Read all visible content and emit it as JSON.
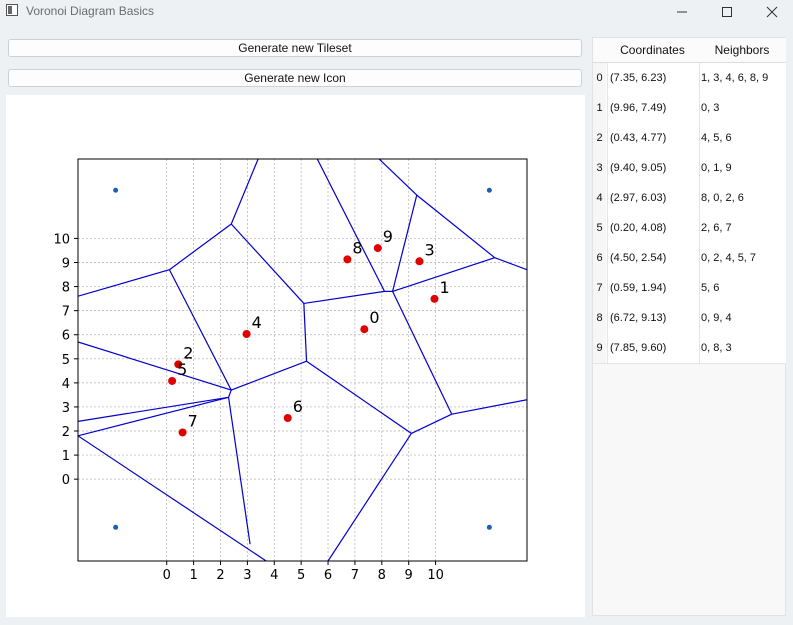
{
  "window": {
    "title": "Voronoi Diagram Basics",
    "minimize_icon": "minimize-icon",
    "maximize_icon": "maximize-icon",
    "close_icon": "close-icon"
  },
  "buttons": {
    "generate_tileset": "Generate new Tileset",
    "generate_icon": "Generate new Icon"
  },
  "table": {
    "headers": [
      "Coordinates",
      "Neighbors"
    ],
    "rows": [
      {
        "index": "0",
        "coordinates": "(7.35, 6.23)",
        "neighbors": "1, 3, 4, 6, 8, 9"
      },
      {
        "index": "1",
        "coordinates": "(9.96, 7.49)",
        "neighbors": "0, 3"
      },
      {
        "index": "2",
        "coordinates": "(0.43, 4.77)",
        "neighbors": "4, 5, 6"
      },
      {
        "index": "3",
        "coordinates": "(9.40, 9.05)",
        "neighbors": "0, 1, 9"
      },
      {
        "index": "4",
        "coordinates": "(2.97, 6.03)",
        "neighbors": "8, 0, 2, 6"
      },
      {
        "index": "5",
        "coordinates": "(0.20, 4.08)",
        "neighbors": "2, 6, 7"
      },
      {
        "index": "6",
        "coordinates": "(4.50, 2.54)",
        "neighbors": "0, 2, 4, 5, 7"
      },
      {
        "index": "7",
        "coordinates": "(0.59, 1.94)",
        "neighbors": "5, 6"
      },
      {
        "index": "8",
        "coordinates": "(6.72, 9.13)",
        "neighbors": "0, 9, 4"
      },
      {
        "index": "9",
        "coordinates": "(7.85, 9.60)",
        "neighbors": "0, 8, 3"
      }
    ]
  },
  "chart_data": {
    "type": "scatter",
    "x_ticks": [
      "0",
      "1",
      "2",
      "3",
      "4",
      "5",
      "6",
      "7",
      "8",
      "9",
      "10"
    ],
    "y_ticks": [
      "0",
      "1",
      "2",
      "3",
      "4",
      "5",
      "6",
      "7",
      "8",
      "9",
      "10"
    ],
    "xlim": [
      -3.3,
      13.4
    ],
    "ylim": [
      -3.4,
      13.3
    ],
    "grid": true,
    "point_color": "#e00000",
    "corner_point_color": "#1f5fb0",
    "edge_color": "#0000cc",
    "points": [
      {
        "label": "0",
        "x": 7.35,
        "y": 6.23
      },
      {
        "label": "1",
        "x": 9.96,
        "y": 7.49
      },
      {
        "label": "2",
        "x": 0.43,
        "y": 4.77
      },
      {
        "label": "3",
        "x": 9.4,
        "y": 9.05
      },
      {
        "label": "4",
        "x": 2.97,
        "y": 6.03
      },
      {
        "label": "5",
        "x": 0.2,
        "y": 4.08
      },
      {
        "label": "6",
        "x": 4.5,
        "y": 2.54
      },
      {
        "label": "7",
        "x": 0.59,
        "y": 1.94
      },
      {
        "label": "8",
        "x": 6.72,
        "y": 9.13
      },
      {
        "label": "9",
        "x": 7.85,
        "y": 9.6
      }
    ],
    "corner_points": [
      {
        "x": -1.9,
        "y": 12.0
      },
      {
        "x": 12.0,
        "y": 12.0
      },
      {
        "x": -1.9,
        "y": -2.0
      },
      {
        "x": 12.0,
        "y": -2.0
      }
    ],
    "vertices": [
      [
        2.4,
        3.7
      ],
      [
        2.3,
        3.4
      ],
      [
        5.2,
        4.9
      ],
      [
        5.1,
        7.3
      ],
      [
        8.1,
        7.8
      ],
      [
        8.4,
        7.8
      ],
      [
        9.1,
        1.9
      ],
      [
        10.6,
        2.7
      ],
      [
        12.2,
        9.2
      ],
      [
        9.3,
        11.8
      ],
      [
        0.1,
        8.7
      ],
      [
        2.4,
        10.6
      ]
    ],
    "edges": [
      [
        [
          -3.3,
          1.8
        ],
        [
          2.3,
          3.4
        ]
      ],
      [
        [
          -3.3,
          2.4
        ],
        [
          2.3,
          3.4
        ]
      ],
      [
        [
          -3.3,
          5.7
        ],
        [
          2.4,
          3.7
        ]
      ],
      [
        [
          -3.3,
          7.6
        ],
        [
          0.1,
          8.7
        ]
      ],
      [
        [
          2.4,
          3.7
        ],
        [
          2.3,
          3.4
        ]
      ],
      [
        [
          2.4,
          3.7
        ],
        [
          5.2,
          4.9
        ]
      ],
      [
        [
          2.4,
          3.7
        ],
        [
          0.1,
          8.7
        ]
      ],
      [
        [
          2.3,
          3.4
        ],
        [
          3.1,
          -2.7
        ]
      ],
      [
        [
          -3.3,
          1.8
        ],
        [
          3.7,
          -3.4
        ]
      ],
      [
        [
          5.2,
          4.9
        ],
        [
          5.1,
          7.3
        ]
      ],
      [
        [
          5.2,
          4.9
        ],
        [
          9.1,
          1.9
        ]
      ],
      [
        [
          5.1,
          7.3
        ],
        [
          8.1,
          7.8
        ]
      ],
      [
        [
          5.1,
          7.3
        ],
        [
          2.4,
          10.6
        ]
      ],
      [
        [
          2.4,
          10.6
        ],
        [
          0.1,
          8.7
        ]
      ],
      [
        [
          2.4,
          10.6
        ],
        [
          3.4,
          13.3
        ]
      ],
      [
        [
          8.1,
          7.8
        ],
        [
          8.4,
          7.8
        ]
      ],
      [
        [
          8.1,
          7.8
        ],
        [
          5.6,
          13.3
        ]
      ],
      [
        [
          8.4,
          7.8
        ],
        [
          12.2,
          9.2
        ]
      ],
      [
        [
          8.4,
          7.8
        ],
        [
          10.6,
          2.7
        ]
      ],
      [
        [
          8.4,
          7.8
        ],
        [
          9.3,
          11.8
        ]
      ],
      [
        [
          9.3,
          11.8
        ],
        [
          12.2,
          9.2
        ]
      ],
      [
        [
          9.3,
          11.8
        ],
        [
          7.9,
          13.3
        ]
      ],
      [
        [
          12.2,
          9.2
        ],
        [
          13.4,
          8.7
        ]
      ],
      [
        [
          10.6,
          2.7
        ],
        [
          9.1,
          1.9
        ]
      ],
      [
        [
          10.6,
          2.7
        ],
        [
          13.4,
          3.3
        ]
      ],
      [
        [
          9.1,
          1.9
        ],
        [
          6.0,
          -3.4
        ]
      ]
    ]
  }
}
